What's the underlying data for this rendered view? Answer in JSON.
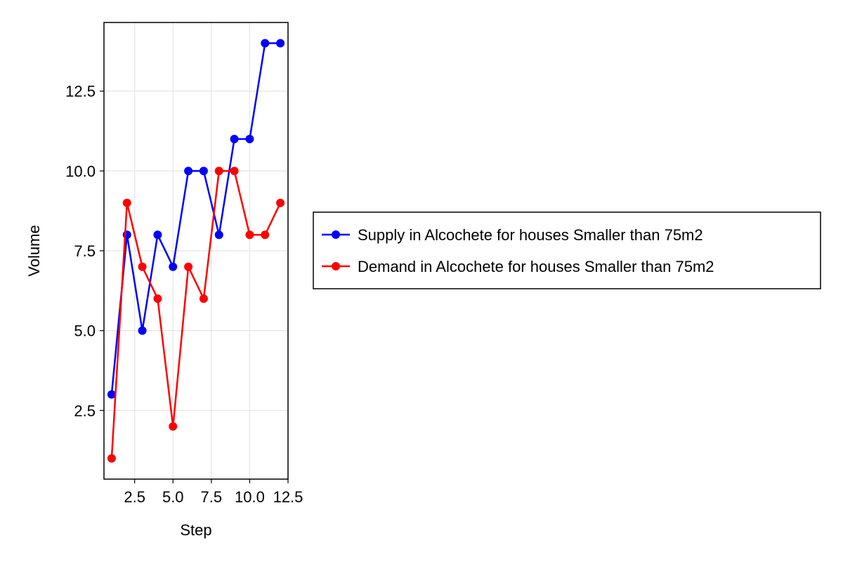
{
  "chart_data": {
    "type": "line",
    "xlabel": "Step",
    "ylabel": "Volume",
    "xlim": [
      0.5,
      12.5
    ],
    "ylim": [
      0.35,
      14.65
    ],
    "xticks": [
      2.5,
      5.0,
      7.5,
      10.0,
      12.5
    ],
    "xtick_labels": [
      "2.5",
      "5.0",
      "7.5",
      "10.0",
      "12.5"
    ],
    "yticks": [
      2.5,
      5.0,
      7.5,
      10.0,
      12.5
    ],
    "ytick_labels": [
      "2.5",
      "5.0",
      "7.5",
      "10.0",
      "12.5"
    ],
    "grid": true,
    "legend_position": "right",
    "x": [
      1,
      2,
      3,
      4,
      5,
      6,
      7,
      8,
      9,
      10,
      11,
      12
    ],
    "series": [
      {
        "name": "Supply in Alcochete for houses Smaller than 75m2",
        "color": "#0000ff",
        "values": [
          3,
          8,
          5,
          8,
          7,
          10,
          10,
          8,
          11,
          11,
          14,
          14
        ]
      },
      {
        "name": "Demand in Alcochete for houses Smaller than 75m2",
        "color": "#ff0000",
        "values": [
          1,
          9,
          7,
          6,
          2,
          7,
          6,
          10,
          10,
          8,
          8,
          9
        ]
      }
    ]
  }
}
